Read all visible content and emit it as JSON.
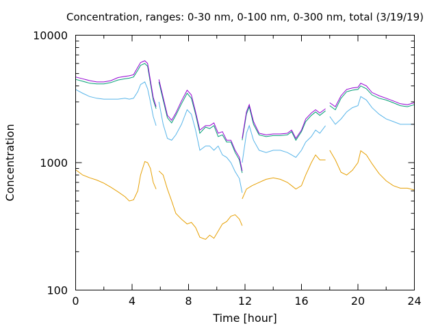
{
  "chart_data": {
    "type": "line",
    "title": "Concentration, ranges: 0-30 nm, 0-100 nm, 0-300 nm, total (3/19/19)",
    "xlabel": "Time [hour]",
    "ylabel": "Concentration",
    "xlim": [
      0,
      24
    ],
    "ylim": [
      100,
      10000
    ],
    "yscale": "log",
    "xticks": [
      "0",
      "4",
      "8",
      "12",
      "16",
      "20",
      "24"
    ],
    "yticks": [
      "100",
      "1000",
      "10000"
    ],
    "grid": false,
    "series": [
      {
        "color": "#e69f00",
        "segments": [
          [
            [
              0,
              880
            ],
            [
              0.5,
              800
            ],
            [
              1,
              760
            ],
            [
              1.5,
              730
            ],
            [
              2,
              690
            ],
            [
              2.5,
              640
            ],
            [
              3,
              590
            ],
            [
              3.5,
              540
            ],
            [
              3.8,
              500
            ],
            [
              4.1,
              510
            ],
            [
              4.4,
              600
            ],
            [
              4.6,
              800
            ],
            [
              4.9,
              1020
            ],
            [
              5.1,
              1000
            ],
            [
              5.3,
              900
            ],
            [
              5.5,
              700
            ],
            [
              5.7,
              620
            ]
          ],
          [
            [
              5.9,
              860
            ],
            [
              6.2,
              800
            ],
            [
              6.5,
              620
            ],
            [
              6.8,
              500
            ],
            [
              7.1,
              400
            ],
            [
              7.5,
              360
            ],
            [
              7.9,
              330
            ],
            [
              8.2,
              340
            ],
            [
              8.5,
              310
            ],
            [
              8.8,
              260
            ],
            [
              9.2,
              250
            ],
            [
              9.5,
              270
            ],
            [
              9.8,
              255
            ],
            [
              10.1,
              290
            ],
            [
              10.4,
              330
            ],
            [
              10.7,
              345
            ],
            [
              11,
              380
            ],
            [
              11.3,
              390
            ],
            [
              11.6,
              360
            ],
            [
              11.8,
              320
            ]
          ],
          [
            [
              11.8,
              520
            ],
            [
              12.1,
              620
            ],
            [
              12.5,
              660
            ],
            [
              13,
              700
            ],
            [
              13.5,
              740
            ],
            [
              14,
              760
            ],
            [
              14.5,
              740
            ],
            [
              15,
              700
            ],
            [
              15.3,
              660
            ],
            [
              15.6,
              620
            ],
            [
              16,
              660
            ],
            [
              16.3,
              800
            ],
            [
              16.7,
              1000
            ],
            [
              17,
              1150
            ],
            [
              17.3,
              1050
            ],
            [
              17.7,
              1050
            ]
          ],
          [
            [
              18,
              1250
            ],
            [
              18.4,
              1050
            ],
            [
              18.8,
              840
            ],
            [
              19.2,
              800
            ],
            [
              19.6,
              870
            ],
            [
              20,
              1000
            ],
            [
              20.2,
              1240
            ],
            [
              20.6,
              1150
            ],
            [
              21,
              980
            ],
            [
              21.5,
              820
            ],
            [
              22,
              720
            ],
            [
              22.5,
              660
            ],
            [
              23,
              630
            ],
            [
              23.5,
              630
            ],
            [
              24,
              610
            ]
          ]
        ]
      },
      {
        "color": "#56b4e9",
        "segments": [
          [
            [
              0,
              3750
            ],
            [
              0.5,
              3500
            ],
            [
              1,
              3300
            ],
            [
              1.5,
              3200
            ],
            [
              2,
              3150
            ],
            [
              2.5,
              3150
            ],
            [
              3,
              3150
            ],
            [
              3.5,
              3200
            ],
            [
              3.8,
              3150
            ],
            [
              4.1,
              3200
            ],
            [
              4.4,
              3600
            ],
            [
              4.6,
              4100
            ],
            [
              4.9,
              4300
            ],
            [
              5.1,
              3800
            ],
            [
              5.3,
              3000
            ],
            [
              5.5,
              2300
            ],
            [
              5.7,
              1950
            ]
          ],
          [
            [
              5.9,
              3000
            ],
            [
              6.2,
              2000
            ],
            [
              6.5,
              1550
            ],
            [
              6.8,
              1500
            ],
            [
              7.1,
              1650
            ],
            [
              7.5,
              2000
            ],
            [
              7.9,
              2600
            ],
            [
              8.2,
              2400
            ],
            [
              8.5,
              1800
            ],
            [
              8.8,
              1250
            ],
            [
              9.2,
              1350
            ],
            [
              9.5,
              1350
            ],
            [
              9.8,
              1250
            ],
            [
              10.1,
              1350
            ],
            [
              10.4,
              1150
            ],
            [
              10.7,
              1100
            ],
            [
              11,
              1000
            ],
            [
              11.3,
              850
            ],
            [
              11.6,
              750
            ],
            [
              11.8,
              580
            ]
          ],
          [
            [
              11.8,
              1000
            ],
            [
              12.1,
              1700
            ],
            [
              12.3,
              1950
            ],
            [
              12.6,
              1500
            ],
            [
              13,
              1250
            ],
            [
              13.5,
              1200
            ],
            [
              14,
              1250
            ],
            [
              14.5,
              1250
            ],
            [
              15,
              1200
            ],
            [
              15.3,
              1150
            ],
            [
              15.6,
              1100
            ],
            [
              16,
              1250
            ],
            [
              16.3,
              1450
            ],
            [
              16.7,
              1600
            ],
            [
              17,
              1800
            ],
            [
              17.3,
              1700
            ],
            [
              17.7,
              1950
            ]
          ],
          [
            [
              18,
              2300
            ],
            [
              18.4,
              2000
            ],
            [
              18.8,
              2200
            ],
            [
              19.2,
              2500
            ],
            [
              19.6,
              2700
            ],
            [
              20,
              2800
            ],
            [
              20.2,
              3300
            ],
            [
              20.6,
              3100
            ],
            [
              21,
              2700
            ],
            [
              21.5,
              2400
            ],
            [
              22,
              2200
            ],
            [
              22.5,
              2100
            ],
            [
              23,
              2000
            ],
            [
              23.5,
              2000
            ],
            [
              24,
              2000
            ]
          ]
        ]
      },
      {
        "color": "#009e73",
        "segments": [
          [
            [
              0,
              4500
            ],
            [
              0.5,
              4350
            ],
            [
              1,
              4200
            ],
            [
              1.5,
              4150
            ],
            [
              2,
              4150
            ],
            [
              2.5,
              4250
            ],
            [
              3,
              4450
            ],
            [
              3.5,
              4550
            ],
            [
              3.8,
              4600
            ],
            [
              4.1,
              4700
            ],
            [
              4.4,
              5300
            ],
            [
              4.6,
              5800
            ],
            [
              4.9,
              6000
            ],
            [
              5.1,
              5700
            ],
            [
              5.3,
              4200
            ],
            [
              5.5,
              3100
            ],
            [
              5.7,
              2650
            ]
          ],
          [
            [
              5.9,
              4300
            ],
            [
              6.2,
              3100
            ],
            [
              6.5,
              2250
            ],
            [
              6.8,
              2050
            ],
            [
              7.1,
              2350
            ],
            [
              7.5,
              2900
            ],
            [
              7.9,
              3500
            ],
            [
              8.2,
              3200
            ],
            [
              8.5,
              2400
            ],
            [
              8.8,
              1700
            ],
            [
              9.2,
              1900
            ],
            [
              9.5,
              1850
            ],
            [
              9.8,
              1950
            ],
            [
              10.1,
              1600
            ],
            [
              10.4,
              1650
            ],
            [
              10.7,
              1450
            ],
            [
              11,
              1450
            ],
            [
              11.3,
              1200
            ],
            [
              11.6,
              1050
            ],
            [
              11.8,
              830
            ]
          ],
          [
            [
              11.8,
              1500
            ],
            [
              12.1,
              2400
            ],
            [
              12.3,
              2750
            ],
            [
              12.6,
              2000
            ],
            [
              13,
              1650
            ],
            [
              13.5,
              1600
            ],
            [
              14,
              1630
            ],
            [
              14.5,
              1630
            ],
            [
              15,
              1650
            ],
            [
              15.3,
              1750
            ],
            [
              15.6,
              1500
            ],
            [
              16,
              1750
            ],
            [
              16.3,
              2100
            ],
            [
              16.7,
              2350
            ],
            [
              17,
              2500
            ],
            [
              17.3,
              2350
            ],
            [
              17.7,
              2550
            ]
          ],
          [
            [
              18,
              2800
            ],
            [
              18.4,
              2600
            ],
            [
              18.8,
              3200
            ],
            [
              19.2,
              3600
            ],
            [
              19.6,
              3700
            ],
            [
              20,
              3750
            ],
            [
              20.2,
              4000
            ],
            [
              20.6,
              3800
            ],
            [
              21,
              3400
            ],
            [
              21.5,
              3200
            ],
            [
              22,
              3100
            ],
            [
              22.5,
              2950
            ],
            [
              23,
              2800
            ],
            [
              23.5,
              2750
            ],
            [
              24,
              2850
            ]
          ]
        ]
      },
      {
        "color": "#9400d3",
        "segments": [
          [
            [
              0,
              4700
            ],
            [
              0.5,
              4550
            ],
            [
              1,
              4400
            ],
            [
              1.5,
              4300
            ],
            [
              2,
              4300
            ],
            [
              2.5,
              4400
            ],
            [
              3,
              4650
            ],
            [
              3.5,
              4750
            ],
            [
              3.8,
              4800
            ],
            [
              4.1,
              4900
            ],
            [
              4.4,
              5600
            ],
            [
              4.6,
              6100
            ],
            [
              4.9,
              6300
            ],
            [
              5.1,
              6000
            ],
            [
              5.3,
              4400
            ],
            [
              5.5,
              3250
            ],
            [
              5.7,
              2750
            ]
          ],
          [
            [
              5.9,
              4500
            ],
            [
              6.2,
              3250
            ],
            [
              6.5,
              2350
            ],
            [
              6.8,
              2150
            ],
            [
              7.1,
              2450
            ],
            [
              7.5,
              3050
            ],
            [
              7.9,
              3700
            ],
            [
              8.2,
              3400
            ],
            [
              8.5,
              2500
            ],
            [
              8.8,
              1800
            ],
            [
              9.2,
              1950
            ],
            [
              9.5,
              1950
            ],
            [
              9.8,
              2050
            ],
            [
              10.1,
              1700
            ],
            [
              10.4,
              1750
            ],
            [
              10.7,
              1500
            ],
            [
              11,
              1500
            ],
            [
              11.3,
              1250
            ],
            [
              11.6,
              1100
            ],
            [
              11.8,
              860
            ]
          ],
          [
            [
              11.8,
              1550
            ],
            [
              12.1,
              2500
            ],
            [
              12.3,
              2850
            ],
            [
              12.6,
              2100
            ],
            [
              13,
              1700
            ],
            [
              13.5,
              1650
            ],
            [
              14,
              1680
            ],
            [
              14.5,
              1680
            ],
            [
              15,
              1700
            ],
            [
              15.3,
              1800
            ],
            [
              15.6,
              1550
            ],
            [
              16,
              1800
            ],
            [
              16.3,
              2200
            ],
            [
              16.7,
              2450
            ],
            [
              17,
              2600
            ],
            [
              17.3,
              2450
            ],
            [
              17.7,
              2650
            ]
          ],
          [
            [
              18,
              2950
            ],
            [
              18.4,
              2750
            ],
            [
              18.8,
              3350
            ],
            [
              19.2,
              3750
            ],
            [
              19.6,
              3850
            ],
            [
              20,
              3900
            ],
            [
              20.2,
              4200
            ],
            [
              20.6,
              4000
            ],
            [
              21,
              3550
            ],
            [
              21.5,
              3350
            ],
            [
              22,
              3200
            ],
            [
              22.5,
              3050
            ],
            [
              23,
              2900
            ],
            [
              23.5,
              2850
            ],
            [
              24,
              2950
            ]
          ]
        ]
      }
    ]
  }
}
